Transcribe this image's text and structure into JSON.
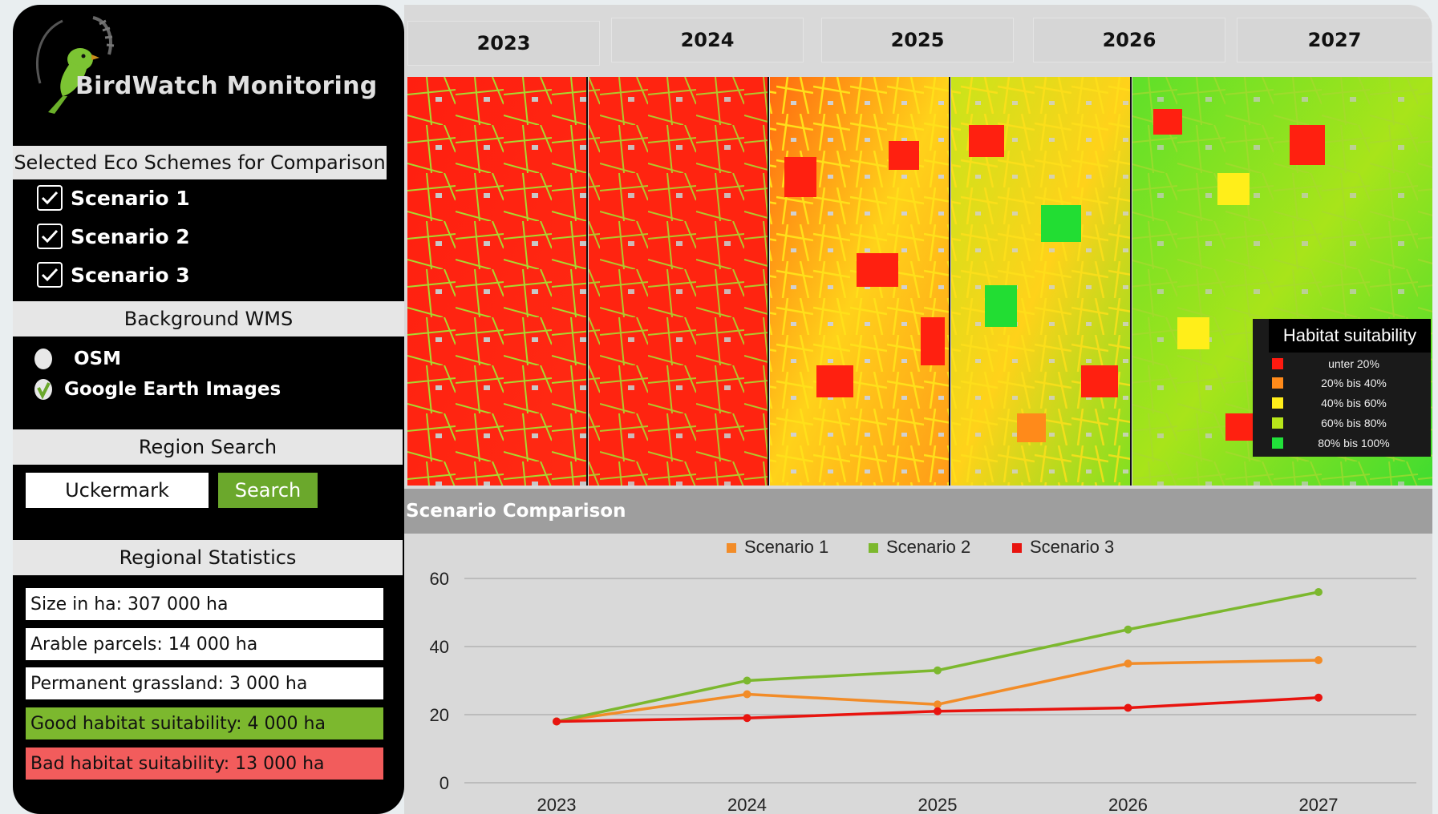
{
  "app": {
    "title": "BirdWatch Monitoring",
    "logo_icon": "bird-icon"
  },
  "colors": {
    "accent_green": "#6ba82c",
    "good": "#7cb82e",
    "bad": "#f25c5c",
    "scenario1": "#f28c28",
    "scenario2": "#7cb82e",
    "scenario3": "#e8140f"
  },
  "eco": {
    "header": "Selected Eco Schemes for Comparison",
    "items": [
      {
        "label": "Scenario 1",
        "checked": true
      },
      {
        "label": "Scenario 2",
        "checked": true
      },
      {
        "label": "Scenario 3",
        "checked": true
      }
    ]
  },
  "wms": {
    "header": "Background WMS",
    "options": [
      {
        "label": "OSM",
        "selected": false
      },
      {
        "label": "Google Earth Images",
        "selected": true
      }
    ]
  },
  "region": {
    "header": "Region Search",
    "value": "Uckermark",
    "button": "Search"
  },
  "stats": {
    "header": "Regional Statistics",
    "items": [
      "Size in ha: 307 000 ha",
      "Arable parcels: 14 000 ha",
      "Permanent grassland: 3 000 ha",
      "Good habitat suitability: 4 000 ha",
      "Bad habitat suitability: 13 000 ha"
    ]
  },
  "years": [
    "2023",
    "2024",
    "2025",
    "2026",
    "2027"
  ],
  "legend": {
    "title": "Habitat suitability",
    "items": [
      {
        "label": "unter 20%",
        "color": "#ff1a10"
      },
      {
        "label": "20% bis 40%",
        "color": "#ff8a1a"
      },
      {
        "label": "40% bis 60%",
        "color": "#ffee1a"
      },
      {
        "label": "60% bis 80%",
        "color": "#b7e61a"
      },
      {
        "label": "80% bis 100%",
        "color": "#21e13a"
      }
    ]
  },
  "comparison": {
    "header": "Scenario Comparison"
  },
  "chart_data": {
    "type": "line",
    "x": [
      "2023",
      "2024",
      "2025",
      "2026",
      "2027"
    ],
    "series": [
      {
        "name": "Scenario 1",
        "values": [
          18,
          26,
          23,
          35,
          36
        ]
      },
      {
        "name": "Scenario 2",
        "values": [
          18,
          30,
          33,
          45,
          56
        ]
      },
      {
        "name": "Scenario 3",
        "values": [
          18,
          19,
          21,
          22,
          25
        ]
      }
    ],
    "ylim": [
      0,
      60
    ],
    "yticks": [
      0,
      20,
      40,
      60
    ],
    "grid": true,
    "legend": "top-center"
  }
}
